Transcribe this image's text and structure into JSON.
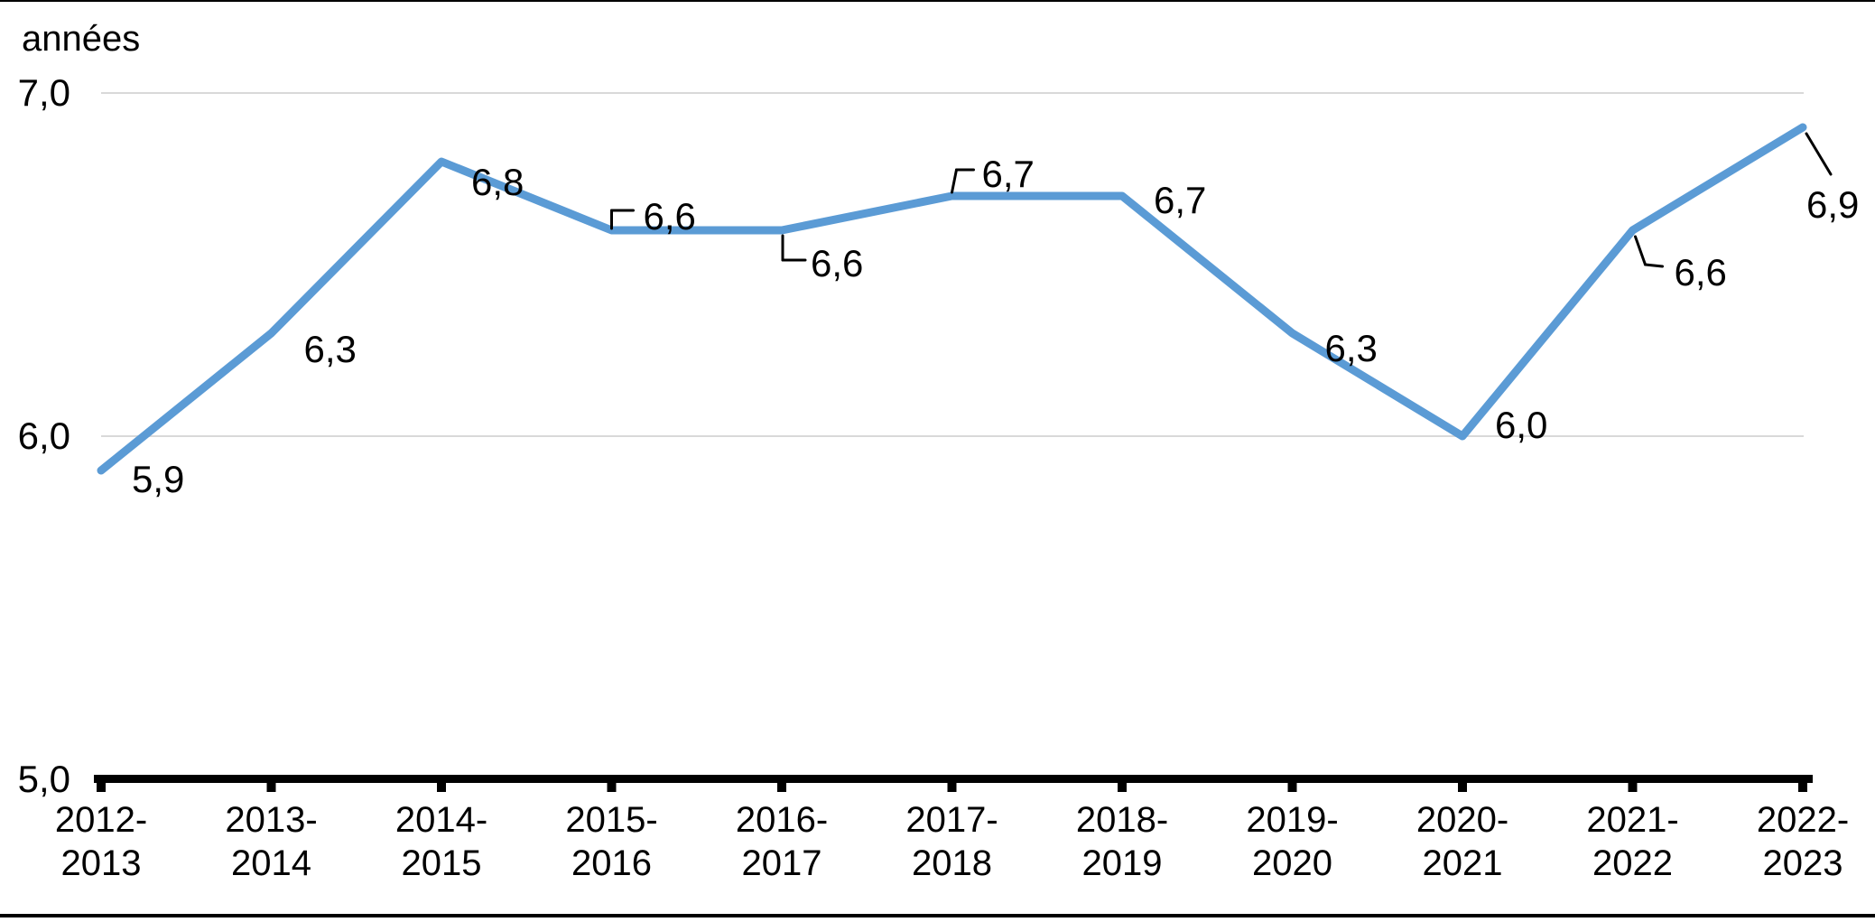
{
  "chart_data": {
    "type": "line",
    "title": "",
    "unit_label": "années",
    "categories": [
      "2012-2013",
      "2013-2014",
      "2014-2015",
      "2015-2016",
      "2016-2017",
      "2017-2018",
      "2018-2019",
      "2019-2020",
      "2020-2021",
      "2021-2022",
      "2022-2023"
    ],
    "values": [
      5.9,
      6.3,
      6.8,
      6.6,
      6.6,
      6.7,
      6.7,
      6.3,
      6.0,
      6.6,
      6.9
    ],
    "point_labels": [
      "5,9",
      "6,3",
      "6,8",
      "6,6",
      "6,6",
      "6,7",
      "6,7",
      "6,3",
      "6,0",
      "6,6",
      "6,9"
    ],
    "y_axis": {
      "range": [
        5.0,
        7.0
      ],
      "ticks": [
        {
          "value": 5.0,
          "label": "5,0"
        },
        {
          "value": 6.0,
          "label": "6,0"
        },
        {
          "value": 7.0,
          "label": "7,0"
        }
      ],
      "gridline_values": [
        6.0,
        7.0
      ]
    },
    "xlabel": "",
    "ylabel": "années",
    "legend": "none",
    "grid": "horizontal",
    "colors": {
      "line": "#5B9BD5",
      "gridline": "#D9D9D9",
      "axis": "#000000",
      "text": "#000000",
      "leader": "#000000",
      "background": "#FFFFFF"
    }
  }
}
